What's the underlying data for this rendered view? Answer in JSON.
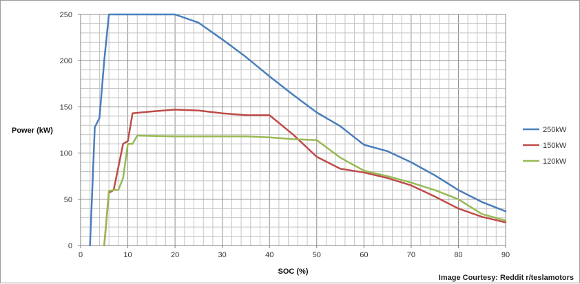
{
  "chart_data": {
    "type": "line",
    "xlabel": "SOC (%)",
    "ylabel": "Power (kW)",
    "xlim": [
      0,
      90
    ],
    "ylim": [
      0,
      250
    ],
    "xticks": [
      0,
      10,
      20,
      30,
      40,
      50,
      60,
      70,
      80,
      90
    ],
    "yticks": [
      0,
      50,
      100,
      150,
      200,
      250
    ],
    "grid": "minor gridlines every 2% SOC and 10 kW",
    "legend_position": "right",
    "series": [
      {
        "name": "250kW",
        "color": "#4a7ebb",
        "x": [
          2,
          3,
          4,
          5,
          6,
          10,
          20,
          25,
          30,
          35,
          40,
          45,
          50,
          55,
          60,
          65,
          70,
          75,
          80,
          85,
          90
        ],
        "y": [
          0,
          128,
          138,
          200,
          250,
          250,
          250,
          241,
          223,
          204,
          183,
          163,
          144,
          129,
          109,
          102,
          90,
          76,
          60,
          47,
          37
        ]
      },
      {
        "name": "150kW",
        "color": "#be4b48",
        "x": [
          5,
          6,
          7,
          9,
          10,
          11,
          15,
          20,
          25,
          30,
          35,
          40,
          45,
          50,
          55,
          60,
          65,
          70,
          75,
          80,
          85,
          90
        ],
        "y": [
          0,
          57,
          60,
          110,
          113,
          143,
          145,
          147,
          146,
          143,
          141,
          141,
          120,
          96,
          83,
          79,
          73,
          65,
          53,
          40,
          31,
          25
        ]
      },
      {
        "name": "120kW",
        "color": "#98b954",
        "x": [
          5,
          6,
          7,
          8,
          9,
          10,
          11,
          12,
          20,
          30,
          35,
          40,
          45,
          50,
          55,
          60,
          65,
          70,
          75,
          80,
          85,
          90
        ],
        "y": [
          0,
          59,
          60,
          60,
          73,
          110,
          110,
          119,
          118,
          118,
          118,
          117,
          115,
          114,
          95,
          81,
          75,
          68,
          60,
          50,
          34,
          27
        ]
      }
    ]
  },
  "credit_text": "Image Courtesy: Reddit r/teslamotors"
}
